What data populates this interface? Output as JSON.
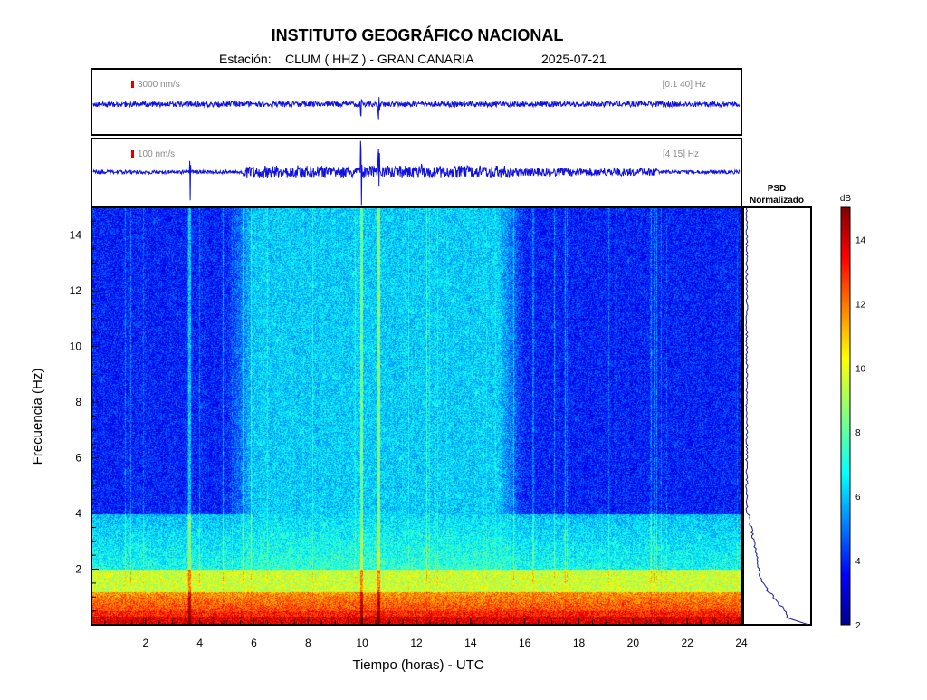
{
  "header": {
    "title": "INSTITUTO GEOGRÁFICO NACIONAL",
    "station_prefix": "Estación:",
    "station": "CLUM ( HHZ ) - GRAN CANARIA",
    "date": "2025-07-21"
  },
  "traces": [
    {
      "scale_label": "3000 nm/s",
      "band_label": "[0.1 40] Hz"
    },
    {
      "scale_label": "100 nm/s",
      "band_label": "[4 15] Hz"
    }
  ],
  "psd": {
    "line1": "PSD",
    "line2": "Normalizado"
  },
  "colors": {
    "trace": "#1010e0",
    "scale_marker": "#dd0000",
    "psd_line": "#1a1aa0"
  },
  "chart_data": {
    "type": "heatmap",
    "title": "INSTITUTO GEOGRÁFICO NACIONAL",
    "xlabel": "Tiempo (horas) - UTC",
    "ylabel": "Frecuencia  (Hz)",
    "xlim": [
      0,
      24
    ],
    "ylim": [
      0,
      15
    ],
    "x_ticks": [
      "2",
      "4",
      "6",
      "8",
      "10",
      "12",
      "14",
      "16",
      "18",
      "20",
      "22",
      "24"
    ],
    "y_ticks": [
      "2",
      "4",
      "6",
      "8",
      "10",
      "12",
      "14"
    ],
    "colorbar": {
      "label": "dB",
      "range": [
        2,
        15
      ],
      "ticks": [
        "2",
        "4",
        "6",
        "8",
        "10",
        "12",
        "14"
      ],
      "colormap": "jet"
    },
    "description_levels": {
      "band_0_1Hz_dB": 12.5,
      "band_1_2Hz_dB": 9.5,
      "band_2_4Hz_dB": 6.5,
      "above_4Hz_night_dB": 4.0,
      "above_4Hz_day_dB": 6.3,
      "day_period_hours": [
        5.5,
        15.5
      ]
    },
    "events_hours": [
      3.6,
      9.95,
      10.6
    ]
  }
}
